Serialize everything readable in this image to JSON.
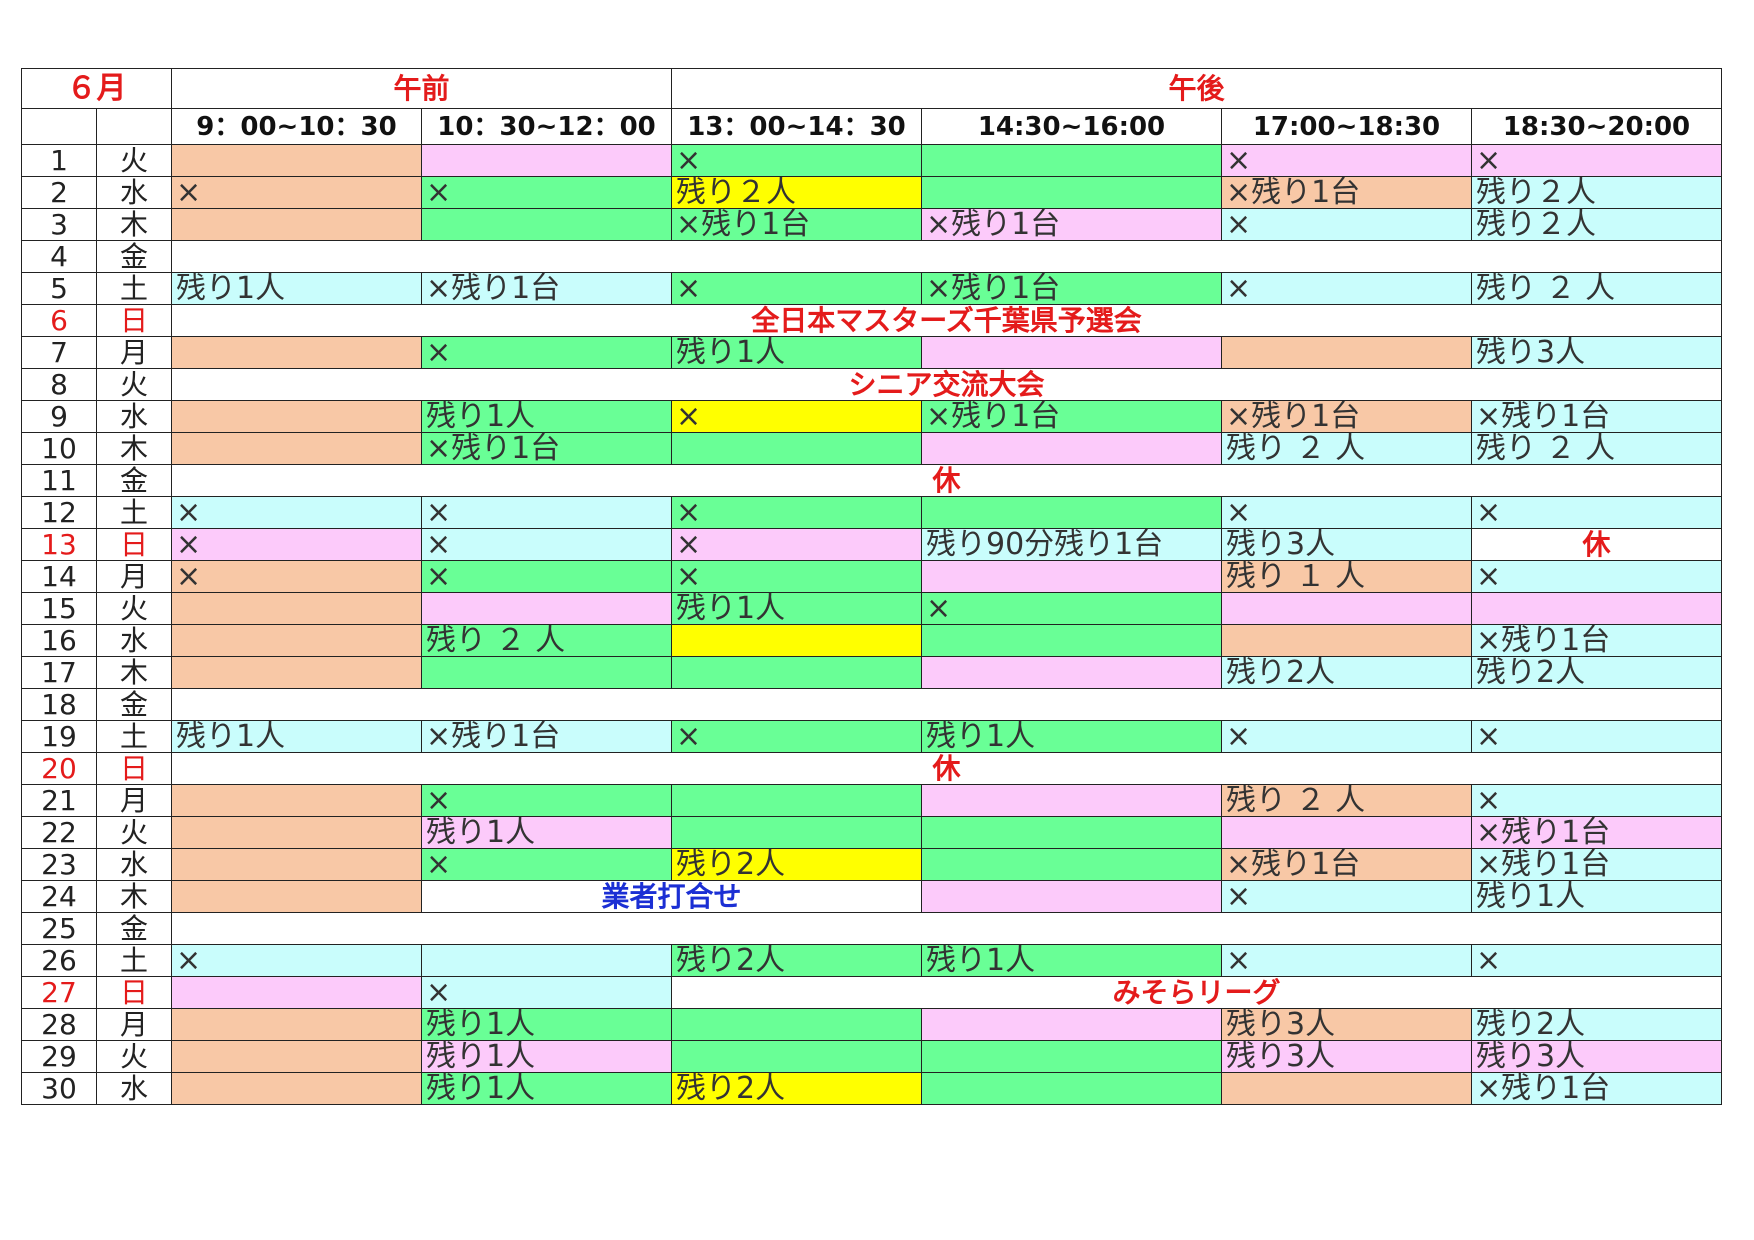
{
  "header": {
    "month": "６月",
    "am": "午前",
    "pm": "午後",
    "slots": [
      "9：00~10：30",
      "10：30~12：00",
      "13：00~14：30",
      "14:30~16:00",
      "17:00~18:30",
      "18:30~20:00"
    ]
  },
  "colors": {
    "o": "#f8c8a6",
    "p": "#fccafa",
    "g": "#69ff96",
    "c": "#c9fdfc",
    "y": "#ffff00",
    "w": "#ffffff",
    "event_red": "#e41b1b",
    "event_blue": "#1b2fd4"
  },
  "rows": [
    {
      "day": "1",
      "wd": "火",
      "cells": [
        {
          "c": "o",
          "t": ""
        },
        {
          "c": "p",
          "t": ""
        },
        {
          "c": "g",
          "t": "×"
        },
        {
          "c": "g",
          "t": ""
        },
        {
          "c": "p",
          "t": "×"
        },
        {
          "c": "p",
          "t": "×"
        }
      ]
    },
    {
      "day": "2",
      "wd": "水",
      "cells": [
        {
          "c": "o",
          "t": "×"
        },
        {
          "c": "g",
          "t": "×"
        },
        {
          "c": "y",
          "t": "残り２人"
        },
        {
          "c": "g",
          "t": ""
        },
        {
          "c": "o",
          "t": "×残り1台"
        },
        {
          "c": "c",
          "t": "残り２人"
        }
      ]
    },
    {
      "day": "3",
      "wd": "木",
      "cells": [
        {
          "c": "o",
          "t": ""
        },
        {
          "c": "g",
          "t": ""
        },
        {
          "c": "g",
          "t": "×残り1台"
        },
        {
          "c": "p",
          "t": "×残り1台"
        },
        {
          "c": "c",
          "t": "×"
        },
        {
          "c": "c",
          "t": "残り２人"
        }
      ]
    },
    {
      "day": "4",
      "wd": "金",
      "cells": [
        {
          "c": "w",
          "t": "",
          "span": 6
        }
      ]
    },
    {
      "day": "5",
      "wd": "土",
      "cells": [
        {
          "c": "c",
          "t": "残り1人"
        },
        {
          "c": "c",
          "t": "×残り1台"
        },
        {
          "c": "g",
          "t": "×"
        },
        {
          "c": "g",
          "t": "×残り1台"
        },
        {
          "c": "c",
          "t": "×"
        },
        {
          "c": "c",
          "t": "残り ２ 人"
        }
      ]
    },
    {
      "day": "6",
      "wd": "日",
      "sun": true,
      "cells": [
        {
          "e": "red",
          "t": "全日本マスターズ千葉県予選会",
          "span": 6
        }
      ]
    },
    {
      "day": "7",
      "wd": "月",
      "cells": [
        {
          "c": "o",
          "t": ""
        },
        {
          "c": "g",
          "t": "×"
        },
        {
          "c": "g",
          "t": "残り1人"
        },
        {
          "c": "p",
          "t": ""
        },
        {
          "c": "o",
          "t": ""
        },
        {
          "c": "c",
          "t": "残り3人"
        }
      ]
    },
    {
      "day": "8",
      "wd": "火",
      "cells": [
        {
          "e": "red",
          "t": "シニア交流大会",
          "span": 6
        }
      ]
    },
    {
      "day": "9",
      "wd": "水",
      "cells": [
        {
          "c": "o",
          "t": ""
        },
        {
          "c": "g",
          "t": "残り1人"
        },
        {
          "c": "y",
          "t": "×"
        },
        {
          "c": "g",
          "t": "×残り1台"
        },
        {
          "c": "o",
          "t": "×残り1台"
        },
        {
          "c": "c",
          "t": "×残り1台"
        }
      ]
    },
    {
      "day": "10",
      "wd": "木",
      "cells": [
        {
          "c": "o",
          "t": ""
        },
        {
          "c": "g",
          "t": "×残り1台"
        },
        {
          "c": "g",
          "t": ""
        },
        {
          "c": "p",
          "t": ""
        },
        {
          "c": "c",
          "t": "残り ２ 人"
        },
        {
          "c": "c",
          "t": "残り ２ 人"
        }
      ]
    },
    {
      "day": "11",
      "wd": "金",
      "cells": [
        {
          "e": "red",
          "t": "休",
          "span": 6
        }
      ]
    },
    {
      "day": "12",
      "wd": "土",
      "cells": [
        {
          "c": "c",
          "t": "×"
        },
        {
          "c": "c",
          "t": "×"
        },
        {
          "c": "g",
          "t": "×"
        },
        {
          "c": "g",
          "t": ""
        },
        {
          "c": "c",
          "t": "×"
        },
        {
          "c": "c",
          "t": "×"
        }
      ]
    },
    {
      "day": "13",
      "wd": "日",
      "sun": true,
      "cells": [
        {
          "c": "p",
          "t": "×"
        },
        {
          "c": "c",
          "t": "×"
        },
        {
          "c": "p",
          "t": "×"
        },
        {
          "c": "c",
          "t": "残り90分残り1台"
        },
        {
          "c": "c",
          "t": "残り3人"
        },
        {
          "e": "red",
          "t": "休"
        }
      ]
    },
    {
      "day": "14",
      "wd": "月",
      "cells": [
        {
          "c": "o",
          "t": "×"
        },
        {
          "c": "g",
          "t": "×"
        },
        {
          "c": "g",
          "t": "×"
        },
        {
          "c": "p",
          "t": ""
        },
        {
          "c": "o",
          "t": "残り １ 人"
        },
        {
          "c": "c",
          "t": "×"
        }
      ]
    },
    {
      "day": "15",
      "wd": "火",
      "cells": [
        {
          "c": "o",
          "t": ""
        },
        {
          "c": "p",
          "t": ""
        },
        {
          "c": "g",
          "t": "残り1人"
        },
        {
          "c": "g",
          "t": "×"
        },
        {
          "c": "p",
          "t": ""
        },
        {
          "c": "p",
          "t": ""
        }
      ]
    },
    {
      "day": "16",
      "wd": "水",
      "cells": [
        {
          "c": "o",
          "t": ""
        },
        {
          "c": "g",
          "t": "残り ２ 人"
        },
        {
          "c": "y",
          "t": ""
        },
        {
          "c": "g",
          "t": ""
        },
        {
          "c": "o",
          "t": ""
        },
        {
          "c": "c",
          "t": "×残り1台"
        }
      ]
    },
    {
      "day": "17",
      "wd": "木",
      "cells": [
        {
          "c": "o",
          "t": ""
        },
        {
          "c": "g",
          "t": ""
        },
        {
          "c": "g",
          "t": ""
        },
        {
          "c": "p",
          "t": ""
        },
        {
          "c": "c",
          "t": "残り2人"
        },
        {
          "c": "c",
          "t": "残り2人"
        }
      ]
    },
    {
      "day": "18",
      "wd": "金",
      "cells": [
        {
          "c": "w",
          "t": "",
          "span": 6
        }
      ]
    },
    {
      "day": "19",
      "wd": "土",
      "cells": [
        {
          "c": "c",
          "t": "残り1人"
        },
        {
          "c": "c",
          "t": "×残り1台"
        },
        {
          "c": "g",
          "t": "×"
        },
        {
          "c": "g",
          "t": "残り1人"
        },
        {
          "c": "c",
          "t": "×"
        },
        {
          "c": "c",
          "t": "×"
        }
      ]
    },
    {
      "day": "20",
      "wd": "日",
      "sun": true,
      "cells": [
        {
          "e": "red",
          "t": "休",
          "span": 6
        }
      ]
    },
    {
      "day": "21",
      "wd": "月",
      "cells": [
        {
          "c": "o",
          "t": ""
        },
        {
          "c": "g",
          "t": "×"
        },
        {
          "c": "g",
          "t": ""
        },
        {
          "c": "p",
          "t": ""
        },
        {
          "c": "o",
          "t": "残り ２ 人"
        },
        {
          "c": "c",
          "t": "×"
        }
      ]
    },
    {
      "day": "22",
      "wd": "火",
      "cells": [
        {
          "c": "o",
          "t": ""
        },
        {
          "c": "p",
          "t": "残り1人"
        },
        {
          "c": "g",
          "t": ""
        },
        {
          "c": "g",
          "t": ""
        },
        {
          "c": "p",
          "t": ""
        },
        {
          "c": "p",
          "t": "×残り1台"
        }
      ]
    },
    {
      "day": "23",
      "wd": "水",
      "cells": [
        {
          "c": "o",
          "t": ""
        },
        {
          "c": "g",
          "t": "×"
        },
        {
          "c": "y",
          "t": "残り2人"
        },
        {
          "c": "g",
          "t": ""
        },
        {
          "c": "o",
          "t": "×残り1台"
        },
        {
          "c": "c",
          "t": "×残り1台"
        }
      ]
    },
    {
      "day": "24",
      "wd": "木",
      "cells": [
        {
          "c": "o",
          "t": ""
        },
        {
          "e": "blue",
          "t": "業者打合せ",
          "span": 2
        },
        {
          "c": "p",
          "t": ""
        },
        {
          "c": "c",
          "t": "×"
        },
        {
          "c": "c",
          "t": "残り1人"
        }
      ]
    },
    {
      "day": "25",
      "wd": "金",
      "cells": [
        {
          "c": "w",
          "t": "",
          "span": 6
        }
      ]
    },
    {
      "day": "26",
      "wd": "土",
      "cells": [
        {
          "c": "c",
          "t": "×"
        },
        {
          "c": "c",
          "t": ""
        },
        {
          "c": "g",
          "t": "残り2人"
        },
        {
          "c": "g",
          "t": "残り1人"
        },
        {
          "c": "c",
          "t": "×"
        },
        {
          "c": "c",
          "t": "×"
        }
      ]
    },
    {
      "day": "27",
      "wd": "日",
      "sun": true,
      "cells": [
        {
          "c": "p",
          "t": ""
        },
        {
          "c": "c",
          "t": "×"
        },
        {
          "e": "red",
          "t": "みそらリーグ",
          "span": 4
        }
      ]
    },
    {
      "day": "28",
      "wd": "月",
      "cells": [
        {
          "c": "o",
          "t": ""
        },
        {
          "c": "g",
          "t": "残り1人"
        },
        {
          "c": "g",
          "t": ""
        },
        {
          "c": "p",
          "t": ""
        },
        {
          "c": "o",
          "t": "残り3人"
        },
        {
          "c": "c",
          "t": "残り2人"
        }
      ]
    },
    {
      "day": "29",
      "wd": "火",
      "cells": [
        {
          "c": "o",
          "t": ""
        },
        {
          "c": "p",
          "t": "残り1人"
        },
        {
          "c": "g",
          "t": ""
        },
        {
          "c": "g",
          "t": ""
        },
        {
          "c": "p",
          "t": "残り3人"
        },
        {
          "c": "p",
          "t": "残り3人"
        }
      ]
    },
    {
      "day": "30",
      "wd": "水",
      "cells": [
        {
          "c": "o",
          "t": ""
        },
        {
          "c": "g",
          "t": "残り1人"
        },
        {
          "c": "y",
          "t": "残り2人"
        },
        {
          "c": "g",
          "t": ""
        },
        {
          "c": "o",
          "t": ""
        },
        {
          "c": "c",
          "t": "×残り1台"
        }
      ]
    }
  ]
}
